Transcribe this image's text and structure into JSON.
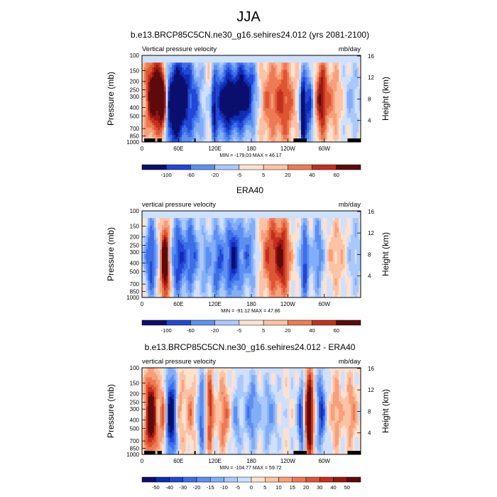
{
  "figure": {
    "title": "JJA"
  },
  "colorbar_colors": [
    "#0a0f6e",
    "#0f2cb4",
    "#2246d6",
    "#3d6ee8",
    "#5c8ff2",
    "#83aef7",
    "#aac8fb",
    "#cfe0fd",
    "#fde1cf",
    "#fbc3a4",
    "#f6a07a",
    "#ee7a54",
    "#dd5532",
    "#c2301c",
    "#971714",
    "#5e0a0a"
  ],
  "chart_data": [
    {
      "type": "heatmap",
      "title": "b.e13.BRCP85C5CN.ne30_g16.sehires24.012 (yrs 2081-2100)",
      "left_label": "Vertical pressure velocity",
      "right_label": "mb/day",
      "ylabel": "Pressure (mb)",
      "y2label": "Height (km)",
      "x_ticks": [
        "0",
        "60E",
        "120E",
        "180",
        "120W",
        "60W"
      ],
      "y_ticks": [
        "100",
        "150",
        "200",
        "250",
        "300",
        "400",
        "500",
        "700",
        "850",
        "1000"
      ],
      "y2_ticks": [
        "16",
        "12",
        "8",
        "4"
      ],
      "min_max": "MIN = -179.03   MAX = 46.17",
      "colorbar_labels": [
        "-100",
        "-60",
        "-20",
        "-5",
        "5",
        "20",
        "40",
        "60"
      ],
      "features": [
        {
          "lon": 20,
          "lev": 0.45,
          "v": 10,
          "wx": 12,
          "wy": 0.45
        },
        {
          "lon": 35,
          "lev": 0.55,
          "v": 11,
          "wx": 6,
          "wy": 0.4
        },
        {
          "lon": 48,
          "lev": 0.6,
          "v": -9,
          "wx": 14,
          "wy": 0.5
        },
        {
          "lon": 68,
          "lev": 0.45,
          "v": -7,
          "wx": 12,
          "wy": 0.55
        },
        {
          "lon": 88,
          "lev": 0.6,
          "v": -4,
          "wx": 10,
          "wy": 0.5
        },
        {
          "lon": 112,
          "lev": 0.4,
          "v": 2,
          "wx": 5,
          "wy": 0.45
        },
        {
          "lon": 118,
          "lev": 0.6,
          "v": -5,
          "wx": 4,
          "wy": 0.4
        },
        {
          "lon": 135,
          "lev": 0.55,
          "v": -6,
          "wx": 18,
          "wy": 0.45
        },
        {
          "lon": 160,
          "lev": 0.5,
          "v": -5,
          "wx": 22,
          "wy": 0.4
        },
        {
          "lon": 175,
          "lev": 0.4,
          "v": -4,
          "wx": 18,
          "wy": 0.45
        },
        {
          "lon": 205,
          "lev": 0.5,
          "v": 4,
          "wx": 16,
          "wy": 0.5
        },
        {
          "lon": 235,
          "lev": 0.55,
          "v": 5,
          "wx": 14,
          "wy": 0.5
        },
        {
          "lon": 265,
          "lev": 0.65,
          "v": -11,
          "wx": 4,
          "wy": 0.4
        },
        {
          "lon": 275,
          "lev": 0.6,
          "v": -6,
          "wx": 6,
          "wy": 0.45
        },
        {
          "lon": 295,
          "lev": 0.5,
          "v": 7,
          "wx": 8,
          "wy": 0.45
        },
        {
          "lon": 315,
          "lev": 0.5,
          "v": 3,
          "wx": 12,
          "wy": 0.4
        },
        {
          "lon": 345,
          "lev": 0.5,
          "v": -2,
          "wx": 12,
          "wy": 0.4
        }
      ],
      "top_band": 0.08,
      "terrain": [
        [
          5,
          30
        ],
        [
          35,
          45
        ],
        [
          119,
          122
        ],
        [
          345,
          375
        ],
        [
          468,
          498
        ]
      ]
    },
    {
      "type": "heatmap",
      "title": "ERA40",
      "left_label": "vertical pressure velocity",
      "right_label": "mb/day",
      "ylabel": "Pressure (mb)",
      "y2label": "Height (km)",
      "x_ticks": [
        "0",
        "60E",
        "120E",
        "180",
        "120W",
        "60W"
      ],
      "y_ticks": [
        "100",
        "150",
        "200",
        "250",
        "300",
        "400",
        "500",
        "700",
        "850",
        "1000"
      ],
      "y2_ticks": [
        "16",
        "12",
        "8",
        "4"
      ],
      "min_max": "MIN = -91.12   MAX = 47.86",
      "colorbar_labels": [
        "-100",
        "-60",
        "-20",
        "-5",
        "5",
        "20",
        "40",
        "60"
      ],
      "features": [
        {
          "lon": 15,
          "lev": 0.55,
          "v": -6,
          "wx": 8,
          "wy": 0.45
        },
        {
          "lon": 38,
          "lev": 0.6,
          "v": 10,
          "wx": 6,
          "wy": 0.45
        },
        {
          "lon": 60,
          "lev": 0.55,
          "v": -6,
          "wx": 10,
          "wy": 0.45
        },
        {
          "lon": 82,
          "lev": 0.5,
          "v": -5,
          "wx": 10,
          "wy": 0.45
        },
        {
          "lon": 105,
          "lev": 0.6,
          "v": -3,
          "wx": 6,
          "wy": 0.4
        },
        {
          "lon": 125,
          "lev": 0.6,
          "v": -5,
          "wx": 10,
          "wy": 0.45
        },
        {
          "lon": 150,
          "lev": 0.55,
          "v": -7,
          "wx": 10,
          "wy": 0.45
        },
        {
          "lon": 175,
          "lev": 0.5,
          "v": -4,
          "wx": 12,
          "wy": 0.45
        },
        {
          "lon": 212,
          "lev": 0.5,
          "v": 5,
          "wx": 14,
          "wy": 0.5
        },
        {
          "lon": 232,
          "lev": 0.55,
          "v": 6,
          "wx": 10,
          "wy": 0.45
        },
        {
          "lon": 268,
          "lev": 0.6,
          "v": -6,
          "wx": 6,
          "wy": 0.45
        },
        {
          "lon": 290,
          "lev": 0.5,
          "v": -4,
          "wx": 8,
          "wy": 0.45
        },
        {
          "lon": 320,
          "lev": 0.5,
          "v": 2,
          "wx": 12,
          "wy": 0.4
        },
        {
          "lon": 350,
          "lev": 0.5,
          "v": -2,
          "wx": 10,
          "wy": 0.4
        }
      ],
      "top_band": 0.08,
      "terrain": []
    },
    {
      "type": "heatmap",
      "title": "b.e13.BRCP85C5CN.ne30_g16.sehires24.012 - ERA40",
      "left_label": "vertical pressure velocity",
      "right_label": "mb/day",
      "ylabel": "Pressure (mb)",
      "y2label": "Height (km)",
      "x_ticks": [
        "0",
        "60E",
        "120E",
        "180",
        "120W",
        "60W"
      ],
      "y_ticks": [
        "100",
        "150",
        "200",
        "250",
        "300",
        "400",
        "500",
        "700",
        "850",
        "1000"
      ],
      "y2_ticks": [
        "16",
        "12",
        "8",
        "4"
      ],
      "min_max": "MIN = -104.77   MAX = 59.72",
      "colorbar_labels": [
        "-50",
        "-40",
        "-30",
        "-20",
        "-15",
        "-10",
        "-5",
        "0",
        "5",
        "10",
        "15",
        "20",
        "30",
        "40",
        "50"
      ],
      "features": [
        {
          "lon": 15,
          "lev": 0.55,
          "v": 10,
          "wx": 8,
          "wy": 0.45
        },
        {
          "lon": 35,
          "lev": 0.55,
          "v": 5,
          "wx": 5,
          "wy": 0.4
        },
        {
          "lon": 48,
          "lev": 0.55,
          "v": -9,
          "wx": 8,
          "wy": 0.5
        },
        {
          "lon": 62,
          "lev": 0.5,
          "v": 3,
          "wx": 6,
          "wy": 0.45
        },
        {
          "lon": 80,
          "lev": 0.5,
          "v": 3,
          "wx": 6,
          "wy": 0.4
        },
        {
          "lon": 98,
          "lev": 0.55,
          "v": -5,
          "wx": 5,
          "wy": 0.45
        },
        {
          "lon": 112,
          "lev": 0.5,
          "v": 6,
          "wx": 5,
          "wy": 0.45
        },
        {
          "lon": 135,
          "lev": 0.55,
          "v": 4,
          "wx": 8,
          "wy": 0.4
        },
        {
          "lon": 155,
          "lev": 0.6,
          "v": -3,
          "wx": 6,
          "wy": 0.4
        },
        {
          "lon": 180,
          "lev": 0.5,
          "v": -4,
          "wx": 10,
          "wy": 0.4
        },
        {
          "lon": 210,
          "lev": 0.55,
          "v": -3,
          "wx": 10,
          "wy": 0.4
        },
        {
          "lon": 262,
          "lev": 0.6,
          "v": -6,
          "wx": 5,
          "wy": 0.45
        },
        {
          "lon": 275,
          "lev": 0.55,
          "v": 10,
          "wx": 6,
          "wy": 0.5
        },
        {
          "lon": 295,
          "lev": 0.5,
          "v": -6,
          "wx": 6,
          "wy": 0.45
        },
        {
          "lon": 320,
          "lev": 0.5,
          "v": 3,
          "wx": 8,
          "wy": 0.4
        },
        {
          "lon": 345,
          "lev": 0.5,
          "v": 3,
          "wx": 8,
          "wy": 0.4
        }
      ],
      "top_band": 0.0,
      "terrain": [
        [
          5,
          30
        ],
        [
          35,
          45
        ],
        [
          119,
          122
        ],
        [
          345,
          375
        ],
        [
          468,
          498
        ]
      ]
    }
  ]
}
